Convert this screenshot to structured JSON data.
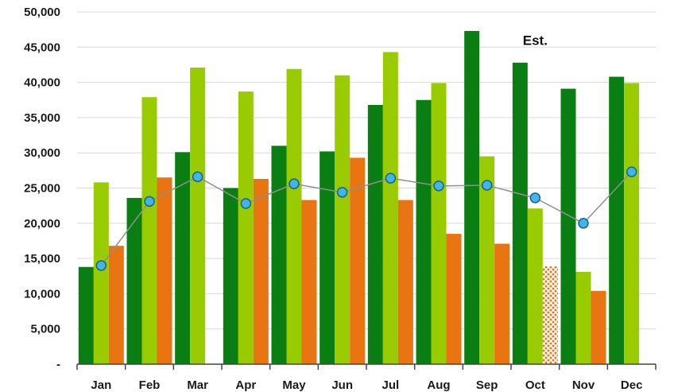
{
  "chart_data": {
    "type": "bar",
    "categories": [
      "Jan",
      "Feb",
      "Mar",
      "Apr",
      "May",
      "Jun",
      "Jul",
      "Aug",
      "Sep",
      "Oct",
      "Nov",
      "Dec"
    ],
    "series": [
      {
        "values": [
          13800,
          23600,
          30100,
          25000,
          31000,
          30200,
          36800,
          37500,
          47300,
          42800,
          39100,
          40800
        ],
        "color": "#0a7e13",
        "kind": "bar"
      },
      {
        "values": [
          25800,
          37900,
          42100,
          38700,
          41900,
          41000,
          44300,
          39900,
          29500,
          22100,
          13100,
          39900
        ],
        "color": "#99cc00",
        "kind": "bar"
      },
      {
        "values": [
          16800,
          26500,
          null,
          26300,
          23300,
          29300,
          23300,
          18500,
          17100,
          13900,
          10400,
          null
        ],
        "color": "#e87511",
        "kind": "bar"
      },
      {
        "values": [
          14000,
          23100,
          26600,
          22800,
          25600,
          24400,
          26400,
          25300,
          25400,
          23600,
          20000,
          27300
        ],
        "color": "#3fb6e8",
        "kind": "line"
      }
    ],
    "ylim": [
      0,
      50000
    ],
    "yticks": [
      0,
      5000,
      10000,
      15000,
      20000,
      25000,
      30000,
      35000,
      40000,
      45000,
      50000
    ],
    "ytick_labels": [
      "-",
      "5,000",
      "10,000",
      "15,000",
      "20,000",
      "25,000",
      "30,000",
      "35,000",
      "40,000",
      "45,000",
      "50,000"
    ],
    "grid": true,
    "estimated_bar": {
      "series_index": 2,
      "category": "Oct",
      "fill": "hatched"
    },
    "annotations": [
      {
        "text": "Est.",
        "category": "Oct",
        "y": 46000
      }
    ]
  }
}
